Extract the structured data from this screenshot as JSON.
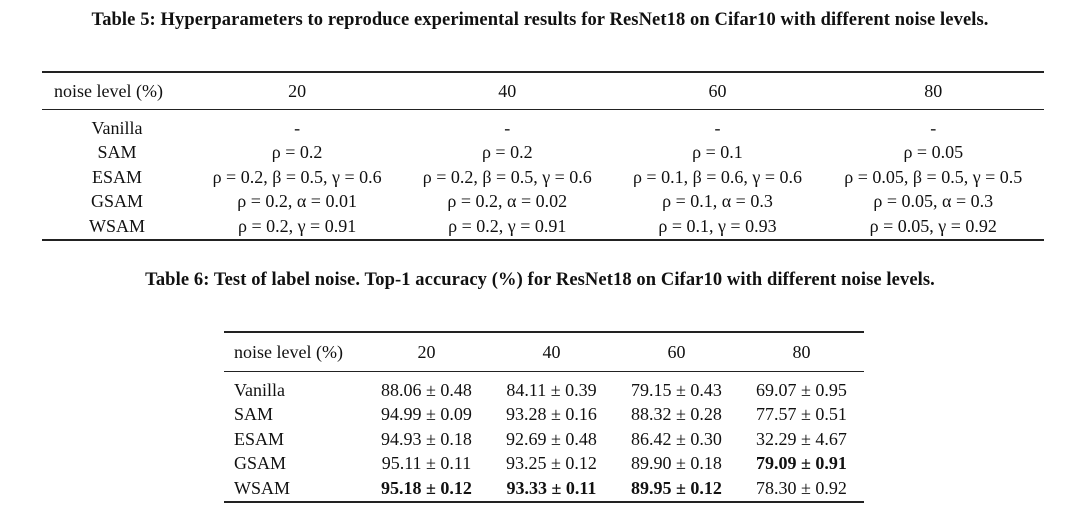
{
  "table5": {
    "caption": "Table 5: Hyperparameters to reproduce experimental results for ResNet18 on Cifar10 with different noise levels.",
    "headers": [
      "noise level (%)",
      "20",
      "40",
      "60",
      "80"
    ],
    "rows": [
      {
        "method": "Vanilla",
        "cells": [
          "-",
          "-",
          "-",
          "-"
        ]
      },
      {
        "method": "SAM",
        "cells": [
          "ρ = 0.2",
          "ρ = 0.2",
          "ρ = 0.1",
          "ρ = 0.05"
        ]
      },
      {
        "method": "ESAM",
        "cells": [
          "ρ = 0.2, β = 0.5, γ = 0.6",
          "ρ = 0.2, β = 0.5, γ = 0.6",
          "ρ = 0.1, β = 0.6, γ = 0.6",
          "ρ = 0.05, β = 0.5, γ = 0.5"
        ]
      },
      {
        "method": "GSAM",
        "cells": [
          "ρ = 0.2, α = 0.01",
          "ρ = 0.2, α = 0.02",
          "ρ = 0.1, α = 0.3",
          "ρ = 0.05, α = 0.3"
        ]
      },
      {
        "method": "WSAM",
        "cells": [
          "ρ = 0.2, γ = 0.91",
          "ρ = 0.2, γ = 0.91",
          "ρ = 0.1, γ = 0.93",
          "ρ = 0.05, γ = 0.92"
        ]
      }
    ]
  },
  "table6": {
    "caption": "Table 6: Test of label noise. Top-1 accuracy (%) for ResNet18 on Cifar10 with different noise levels.",
    "headers": [
      "noise level (%)",
      "20",
      "40",
      "60",
      "80"
    ],
    "rows": [
      {
        "method": "Vanilla",
        "cells": [
          "88.06 ± 0.48",
          "84.11 ± 0.39",
          "79.15 ± 0.43",
          "69.07 ± 0.95"
        ],
        "bold": [
          false,
          false,
          false,
          false
        ]
      },
      {
        "method": "SAM",
        "cells": [
          "94.99 ± 0.09",
          "93.28 ± 0.16",
          "88.32 ± 0.28",
          "77.57 ± 0.51"
        ],
        "bold": [
          false,
          false,
          false,
          false
        ]
      },
      {
        "method": "ESAM",
        "cells": [
          "94.93 ± 0.18",
          "92.69 ± 0.48",
          "86.42 ± 0.30",
          "32.29 ± 4.67"
        ],
        "bold": [
          false,
          false,
          false,
          false
        ]
      },
      {
        "method": "GSAM",
        "cells": [
          "95.11 ± 0.11",
          "93.25 ± 0.12",
          "89.90 ± 0.18",
          "79.09 ± 0.91"
        ],
        "bold": [
          false,
          false,
          false,
          true
        ]
      },
      {
        "method": "WSAM",
        "cells": [
          "95.18 ± 0.12",
          "93.33 ± 0.11",
          "89.95 ± 0.12",
          "78.30 ± 0.92"
        ],
        "bold": [
          true,
          true,
          true,
          false
        ]
      }
    ]
  }
}
